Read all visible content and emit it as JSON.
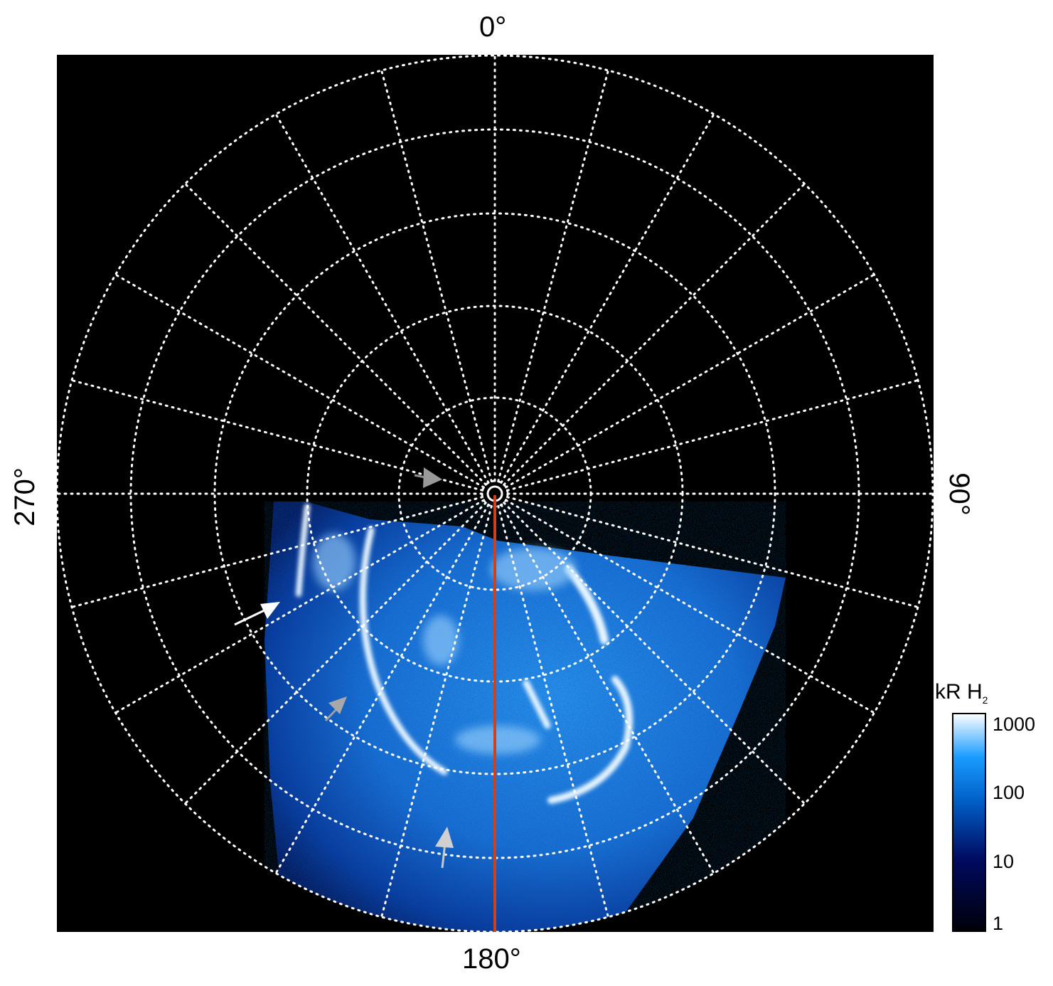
{
  "map": {
    "projection": "polar",
    "labels": {
      "top": "0°",
      "right": "90°",
      "bottom": "180°",
      "left": "270°"
    },
    "grid": {
      "style": "dotted",
      "color": "#ffffff",
      "longitude_step_deg": 15
    },
    "background_color": "#000000",
    "meridian_line_color": "#d0401a",
    "arrows": [
      {
        "color": "#ffffff"
      },
      {
        "color": "#a0a0a0"
      },
      {
        "color": "#c8c8c8"
      },
      {
        "color": "#909090"
      }
    ]
  },
  "colorbar": {
    "title": "kR H",
    "title_sub": "2",
    "scale": "log",
    "range": [
      1,
      1000
    ],
    "ticks": [
      "1000",
      "100",
      "10",
      "1"
    ],
    "colors": [
      "#000008",
      "#000a60",
      "#0060c8",
      "#1a9cff",
      "#ffffff"
    ]
  }
}
